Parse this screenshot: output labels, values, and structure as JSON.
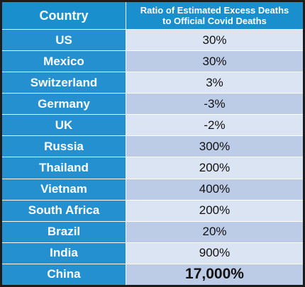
{
  "chart_data": {
    "type": "table",
    "headers": {
      "country": "Country",
      "ratio_line1": "Ratio of Estimated Excess Deaths",
      "ratio_line2": "to Official Covid Deaths"
    },
    "rows": [
      {
        "country": "US",
        "ratio": "30%"
      },
      {
        "country": "Mexico",
        "ratio": "30%"
      },
      {
        "country": "Switzerland",
        "ratio": "3%"
      },
      {
        "country": "Germany",
        "ratio": "-3%"
      },
      {
        "country": "UK",
        "ratio": "-2%"
      },
      {
        "country": "Russia",
        "ratio": "300%"
      },
      {
        "country": "Thailand",
        "ratio": "200%"
      },
      {
        "country": "Vietnam",
        "ratio": "400%"
      },
      {
        "country": "South Africa",
        "ratio": "200%"
      },
      {
        "country": "Brazil",
        "ratio": "20%"
      },
      {
        "country": "India",
        "ratio": "900%"
      },
      {
        "country": "China",
        "ratio": "17,000%"
      }
    ]
  },
  "colors": {
    "header_bg": "#1a8fcd",
    "country_cell_bg": "#2590d0",
    "value_row_light": "#dbe4f3",
    "value_row_dark": "#bccbe6",
    "border": "#1c1c1c"
  }
}
